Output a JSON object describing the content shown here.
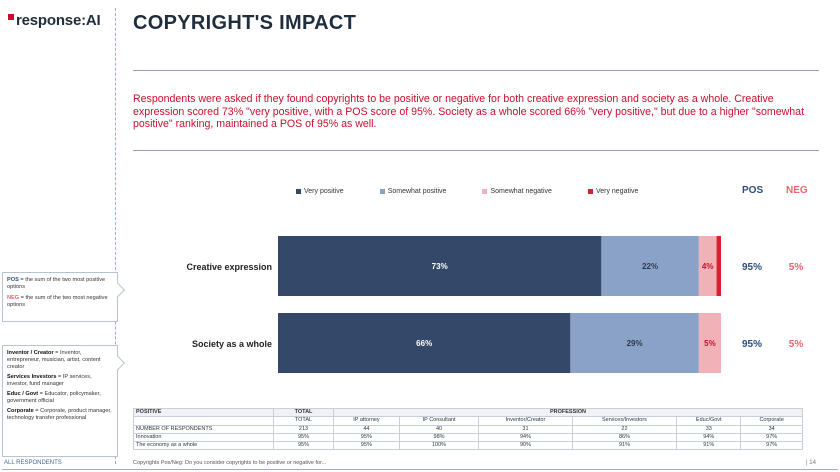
{
  "brand": {
    "logo_text": "response:AI"
  },
  "title": "COPYRIGHT'S IMPACT",
  "summary": "Respondents were asked if they found copyrights to be positive or negative for both creative expression and society as a whole.  Creative expression scored 73% \"very positive, with a POS score of 95%. Society as a whole scored 66% \"very positive,\" but due to a higher \"somewhat positive\" ranking, maintained a POS of 95% as well.",
  "colors": {
    "very_positive": "#34496a",
    "somewhat_positive": "#8aa2c8",
    "somewhat_negative": "#f0b2b6",
    "very_negative": "#d4232f",
    "pos": "#2e4d7b",
    "neg": "#e8666f",
    "summary": "#c8102e"
  },
  "headers": {
    "pos": "POS",
    "neg": "NEG"
  },
  "sidebar": {
    "pos_label": "POS",
    "pos_text": " = the sum of the two most positive options",
    "neg_label": "NEG",
    "neg_text": " = the sum of the two most negative options",
    "definitions": [
      {
        "term": "Inventor / Creator",
        "text": " = Inventor, entrepreneur, musician, artist, content creator"
      },
      {
        "term": "Services Investors",
        "text": " = IP services, investor, fund manager"
      },
      {
        "term": "Educ / Govt",
        "text": " = Educator, policymaker, government official"
      },
      {
        "term": "Corporate",
        "text": " = Corporate, product manager, technology transfer professional"
      }
    ]
  },
  "chart_data": {
    "type": "bar",
    "orientation": "horizontal",
    "stacked": true,
    "categories": [
      "Creative expression",
      "Society as a whole"
    ],
    "series": [
      {
        "name": "Very positive",
        "values": [
          73,
          66
        ],
        "labels": [
          "73%",
          "66%"
        ]
      },
      {
        "name": "Somewhat positive",
        "values": [
          22,
          29
        ],
        "labels": [
          "22%",
          "29%"
        ]
      },
      {
        "name": "Somewhat negative",
        "values": [
          4,
          5
        ],
        "labels": [
          "4%",
          "5%"
        ]
      },
      {
        "name": "Very negative",
        "values": [
          1,
          0
        ],
        "labels": [
          "",
          ""
        ]
      }
    ],
    "pos": [
      "95%",
      "95%"
    ],
    "neg": [
      "5%",
      "5%"
    ],
    "xlim": [
      0,
      100
    ],
    "legend_position": "top"
  },
  "table": {
    "head1": [
      "POSITIVE",
      "TOTAL",
      "PROFESSION"
    ],
    "head2": [
      "TOTAL",
      "IP attorney",
      "IP Consultant",
      "Inventor/Creator",
      "Services/Investors",
      "Educ/Govt",
      "Corporate"
    ],
    "rows": [
      {
        "label": "NUMBER OF RESPONDENTS",
        "cells": [
          "213",
          "44",
          "40",
          "31",
          "22",
          "33",
          "34"
        ]
      },
      {
        "label": "Innovation",
        "cells": [
          "95%",
          "95%",
          "98%",
          "94%",
          "86%",
          "94%",
          "97%"
        ]
      },
      {
        "label": "The economy as a whole",
        "cells": [
          "95%",
          "95%",
          "100%",
          "90%",
          "91%",
          "91%",
          "97%"
        ]
      }
    ]
  },
  "footer": {
    "left": "ALL RESPONDENTS",
    "question": "Copyrights Pos/Neg: Do you consider copyrights to be positive or negative for...",
    "page": "| 14"
  }
}
